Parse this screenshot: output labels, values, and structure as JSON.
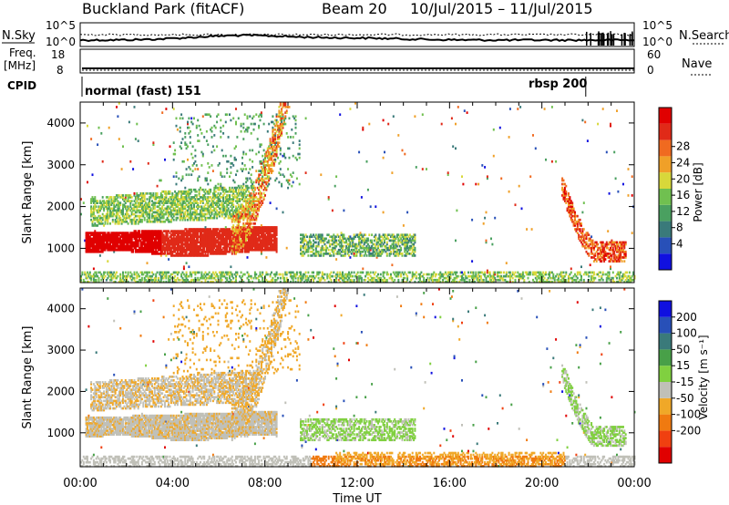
{
  "header": {
    "station": "Buckland Park (fitACF)",
    "beam": "Beam 20",
    "date_range": "10/Jul/2015 – 11/Jul/2015"
  },
  "sky_panel": {
    "left_label": "N.Sky",
    "left_top": "10^5",
    "left_bottom": "10^0",
    "right_label": "N.Search",
    "right_top": "10^5",
    "right_bottom": "10^0"
  },
  "freq_panel": {
    "left_label_1": "Freq.",
    "left_label_2": "[MHz]",
    "left_top": "18",
    "left_bottom": "8",
    "right_label": "Nave",
    "right_top": "60",
    "right_bottom": "0"
  },
  "cpid_panel": {
    "label": "CPID",
    "segments": [
      {
        "name": "normal (fast) 151",
        "start_hour": 0.0
      },
      {
        "name": "rbsp 200",
        "start_hour": 21.9
      }
    ]
  },
  "chart_data": [
    {
      "type": "heatmap",
      "name": "power-panel",
      "quantity": "Power",
      "ylabel": "Slant Range [km]",
      "xlabel": "",
      "y_ticks": [
        "1000",
        "2000",
        "3000",
        "4000"
      ],
      "ylim": [
        180,
        4500
      ],
      "xlim_hours": [
        0,
        24
      ],
      "colorbar": {
        "label": "Power [dB]",
        "ticks": [
          "28",
          "24",
          "20",
          "16",
          "12",
          "8",
          "4"
        ],
        "colors": [
          "#1010e0",
          "#2850b8",
          "#3a7a7a",
          "#4aa060",
          "#70c050",
          "#d8d83a",
          "#f0a028",
          "#f06a20",
          "#e02a18",
          "#e00000"
        ]
      },
      "regions_approx": [
        {
          "t0": 0.2,
          "t1": 3.5,
          "r0": 900,
          "r1": 1400,
          "level": "28+"
        },
        {
          "t0": 3.5,
          "t1": 8.0,
          "r0": 900,
          "r1": 1300,
          "level": "24-28"
        },
        {
          "t0": 0.5,
          "t1": 7.0,
          "r0": 1500,
          "r1": 2200,
          "level": "12-20"
        },
        {
          "t0": 6.5,
          "t1": 9.2,
          "r0": 1200,
          "r1": 4500,
          "level": "16-24"
        },
        {
          "t0": 9.5,
          "t1": 15.0,
          "r0": 700,
          "r1": 1400,
          "level": "8-16"
        },
        {
          "t0": 20.8,
          "t1": 23.5,
          "r0": 900,
          "r1": 2600,
          "level": "16-28"
        }
      ]
    },
    {
      "type": "heatmap",
      "name": "velocity-panel",
      "quantity": "Velocity",
      "ylabel": "Slant Range [km]",
      "xlabel": "Time UT",
      "x_ticks": [
        "00:00",
        "04:00",
        "08:00",
        "12:00",
        "16:00",
        "20:00",
        "00:00"
      ],
      "y_ticks": [
        "1000",
        "2000",
        "3000",
        "4000"
      ],
      "ylim": [
        180,
        4500
      ],
      "xlim_hours": [
        0,
        24
      ],
      "colorbar": {
        "label": "Velocity [m s⁻¹]",
        "ticks": [
          "200",
          "100",
          "50",
          "15",
          "-15",
          "-50",
          "-100",
          "-200"
        ],
        "colors": [
          "#e00000",
          "#f04010",
          "#f07a10",
          "#f0a828",
          "#c0c0b8",
          "#80d040",
          "#48a048",
          "#3a7a7a",
          "#2850b8",
          "#1010e0"
        ]
      },
      "regions_approx": [
        {
          "t0": 0.2,
          "t1": 9.5,
          "r0": 800,
          "r1": 2300,
          "level": "-15 to 15"
        },
        {
          "t0": 3.0,
          "t1": 9.5,
          "r0": 1000,
          "r1": 4500,
          "level": "-50 to -15"
        },
        {
          "t0": 9.5,
          "t1": 14.0,
          "r0": 900,
          "r1": 1400,
          "level": "15 to 50"
        },
        {
          "t0": 11.0,
          "t1": 20.0,
          "r0": 200,
          "r1": 500,
          "level": "-50 to -15"
        },
        {
          "t0": 20.8,
          "t1": 23.5,
          "r0": 900,
          "r1": 2600,
          "level": "15 to 50"
        }
      ]
    }
  ]
}
